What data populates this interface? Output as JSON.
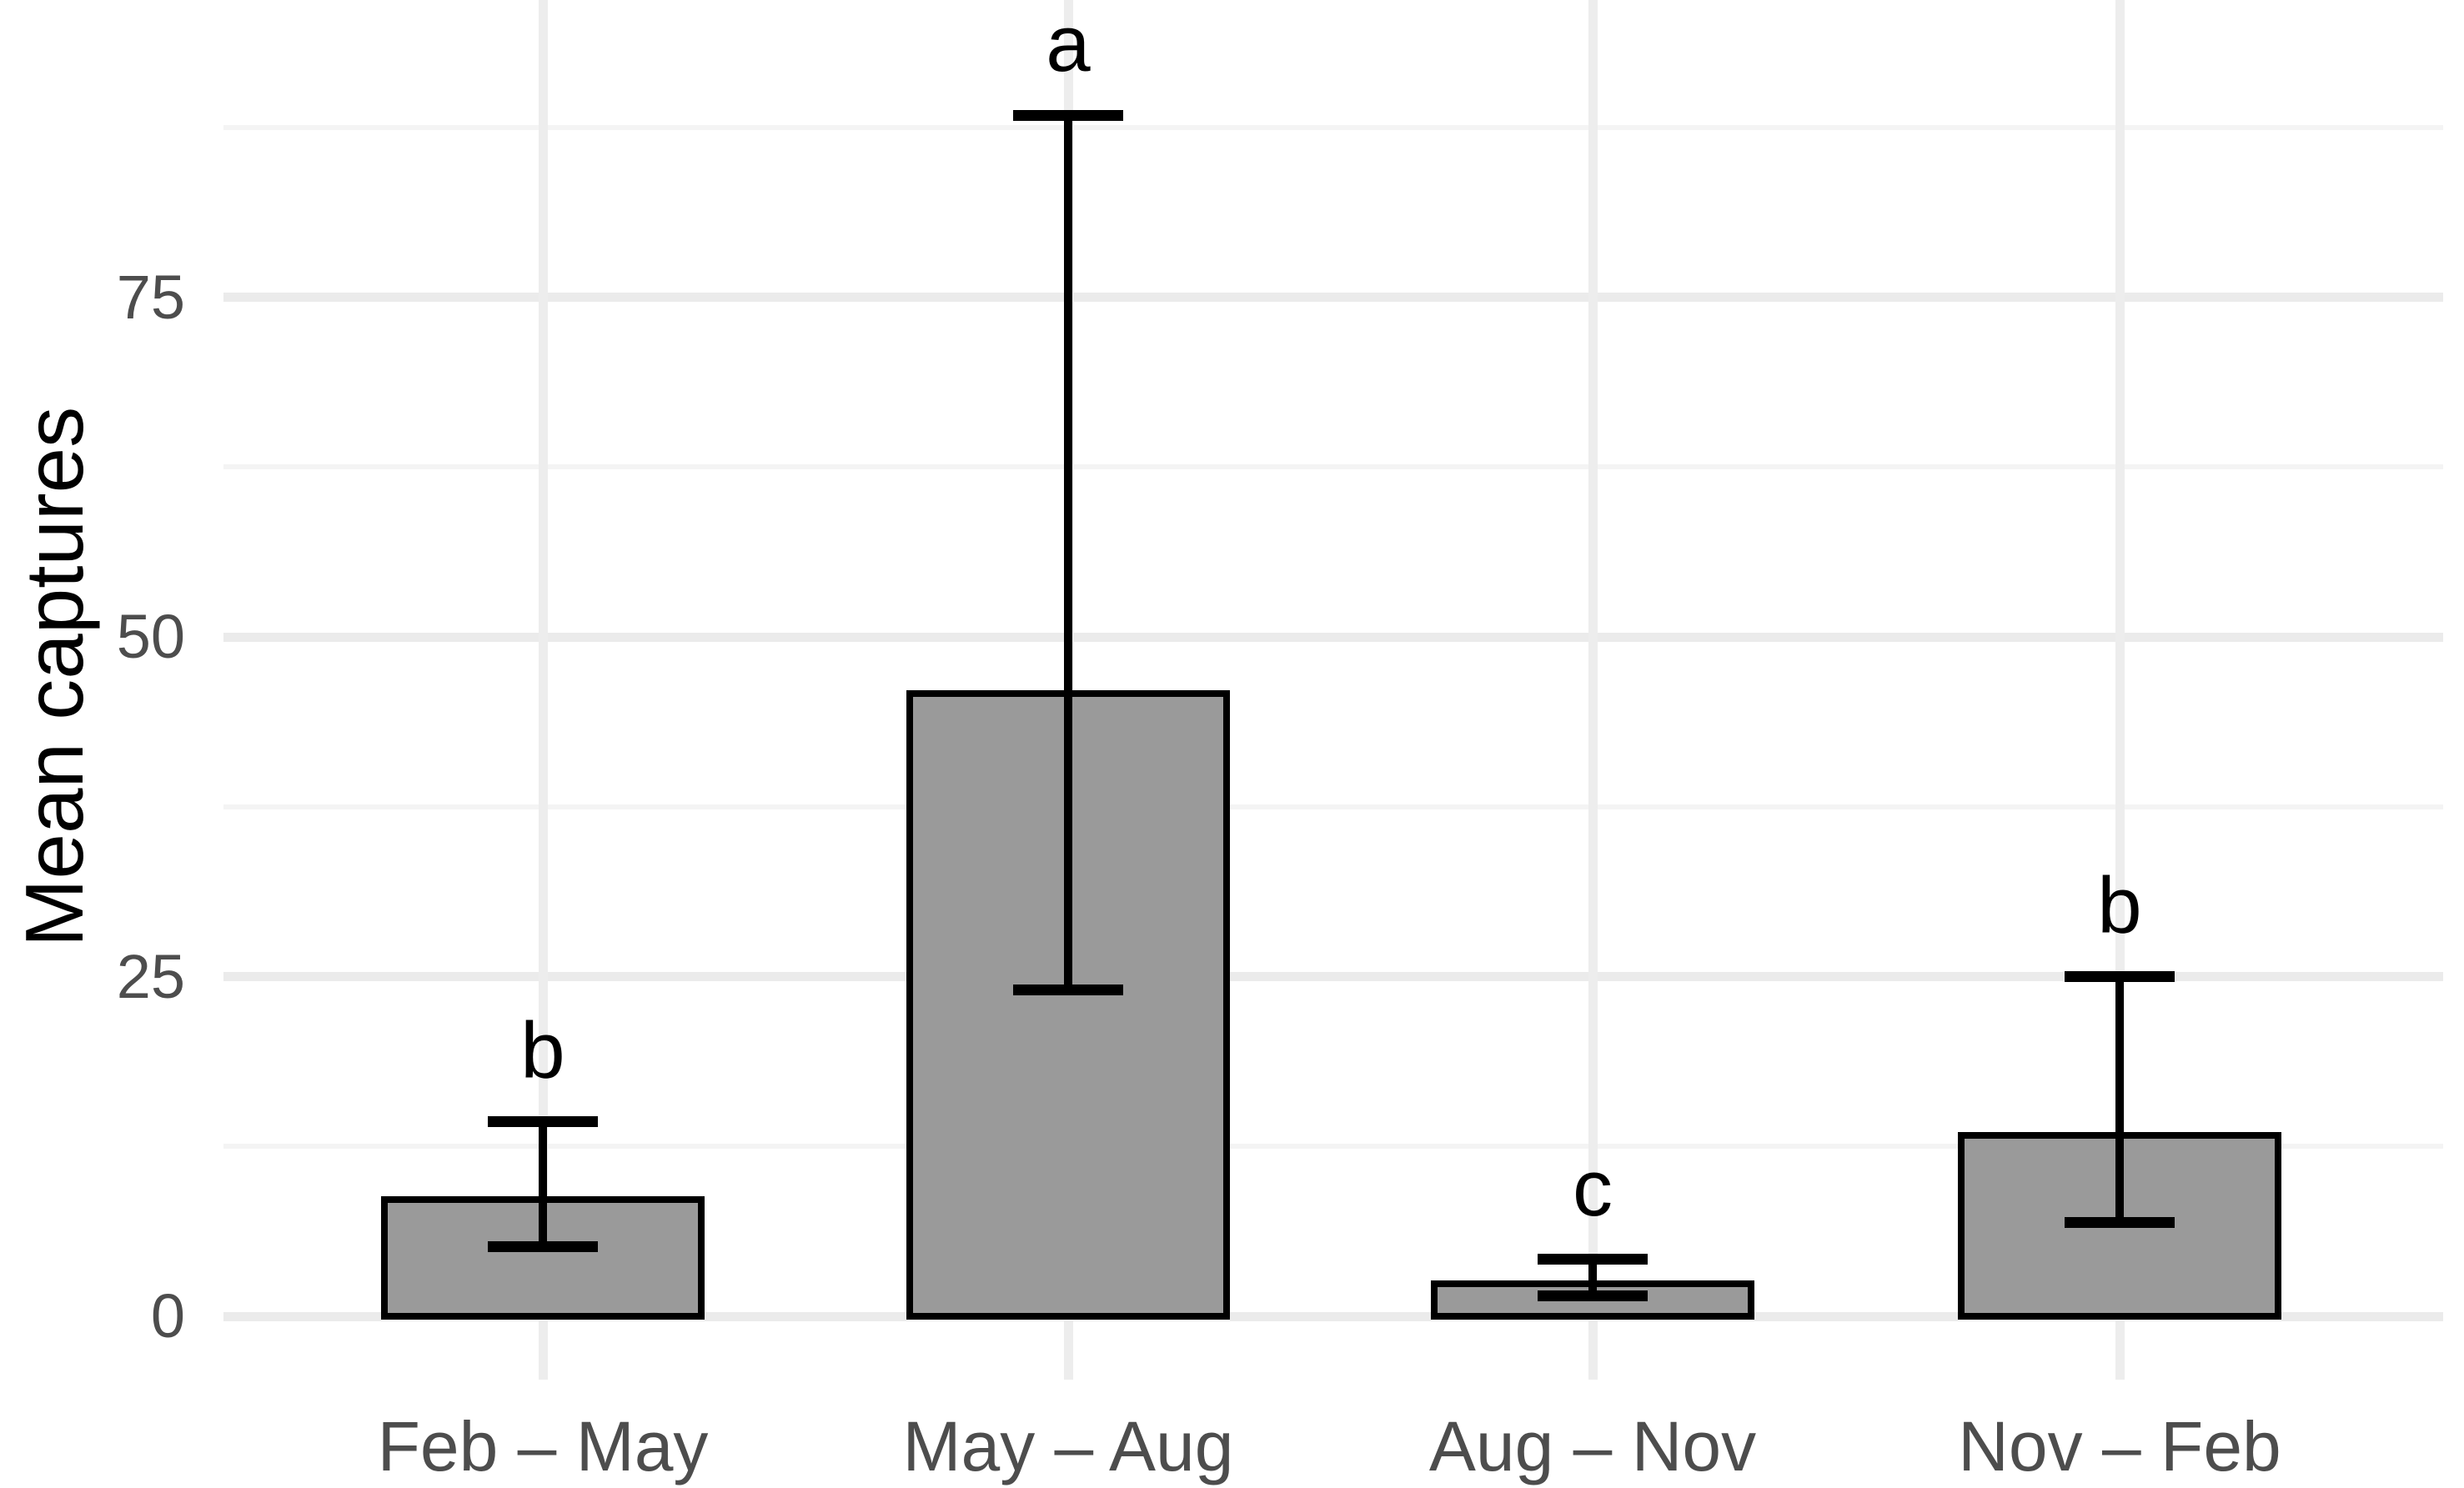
{
  "chart_data": {
    "type": "bar",
    "title": "",
    "xlabel": "",
    "ylabel": "Mean captures",
    "categories": [
      "Feb – May",
      "May – Aug",
      "Aug – Nov",
      "Nov – Feb"
    ],
    "series": [
      {
        "name": "Mean captures",
        "values": [
          8.6,
          45.8,
          2.4,
          13.3
        ]
      }
    ],
    "error_bars": {
      "lower": [
        5.1,
        24.0,
        1.5,
        6.9
      ],
      "upper": [
        14.3,
        88.4,
        4.2,
        25.0
      ]
    },
    "significance_letters": [
      "b",
      "a",
      "c",
      "b"
    ],
    "y_ticks": [
      {
        "value": 0,
        "label": "0"
      },
      {
        "value": 25,
        "label": "25"
      },
      {
        "value": 50,
        "label": "50"
      },
      {
        "value": 75,
        "label": "75"
      }
    ],
    "y_minor_ticks": [
      12.5,
      37.5,
      62.5,
      87.5
    ],
    "ylim": [
      0,
      96.5
    ],
    "grid": "horizontal major and minor lines; one vertical line per category",
    "legend": "none",
    "colors": {
      "bar_fill": "#9a9a9a",
      "bar_border": "#000000",
      "error_bar": "#000000",
      "grid_major": "#ebebeb",
      "grid_minor": "#f4f4f4",
      "tick_label": "#4d4d4d",
      "axis_title": "#000000",
      "annotation": "#000000",
      "background": "#ffffff"
    }
  }
}
